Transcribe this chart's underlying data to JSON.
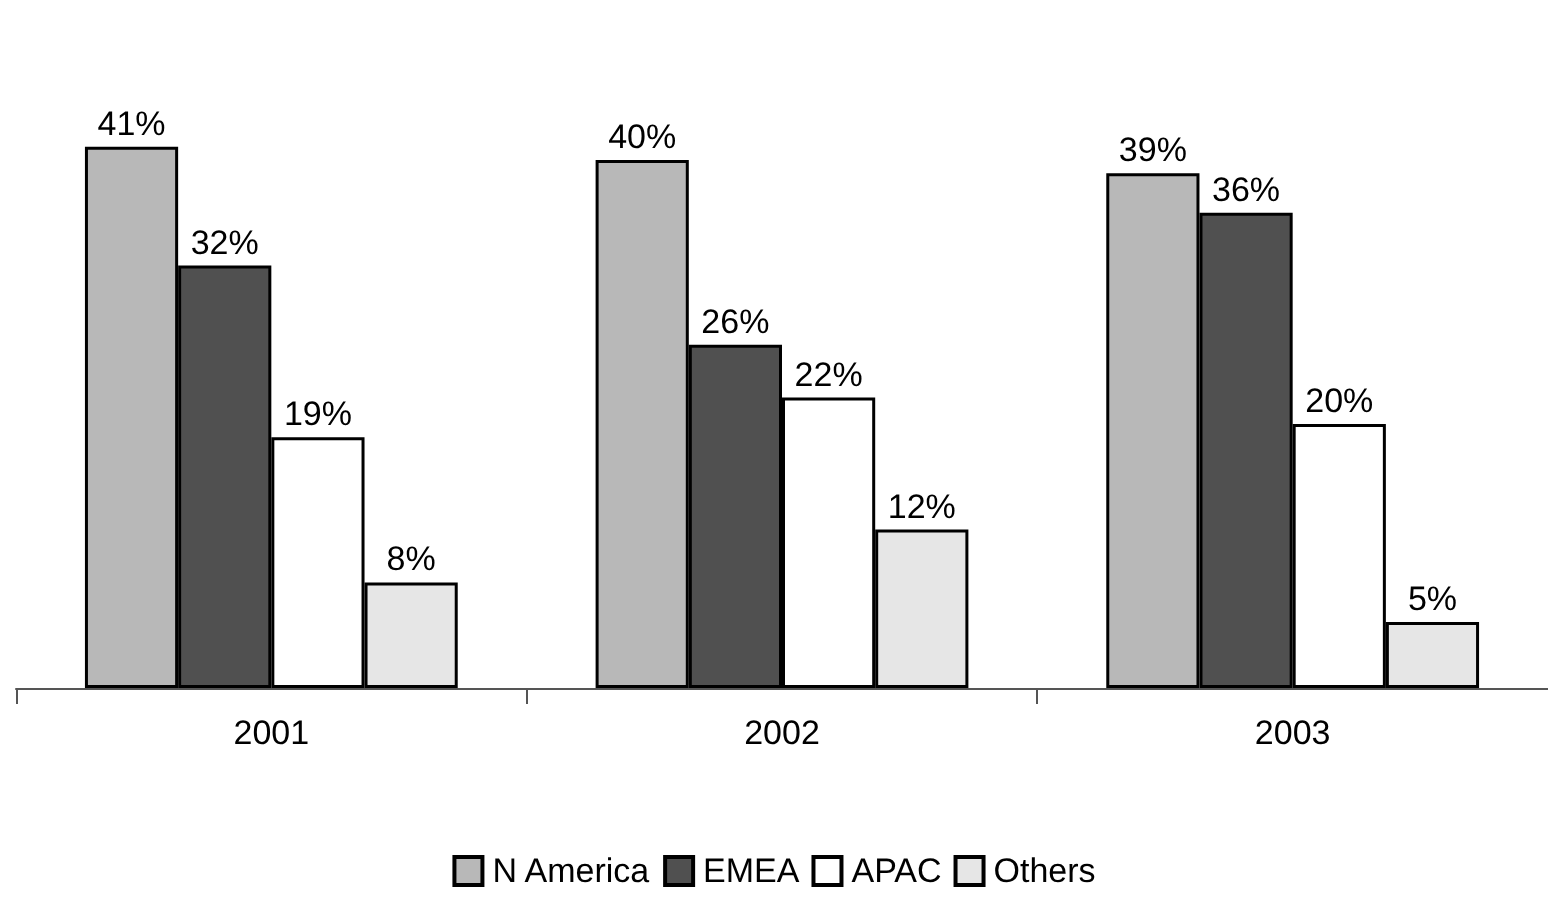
{
  "chart_data": {
    "type": "bar",
    "categories": [
      "2001",
      "2002",
      "2003"
    ],
    "series": [
      {
        "name": "N America",
        "color": "#b8b8b8",
        "values": [
          41,
          40,
          39
        ],
        "value_labels": [
          "41%",
          "40%",
          "39%"
        ]
      },
      {
        "name": "EMEA",
        "color": "#505050",
        "values": [
          32,
          26,
          36
        ],
        "value_labels": [
          "32%",
          "26%",
          "36%"
        ]
      },
      {
        "name": "APAC",
        "color": "#ffffff",
        "values": [
          19,
          22,
          20
        ],
        "value_labels": [
          "19%",
          "22%",
          "20%"
        ]
      },
      {
        "name": "Others",
        "color": "#e6e6e6",
        "values": [
          8,
          12,
          5
        ],
        "value_labels": [
          "8%",
          "12%",
          "5%"
        ]
      }
    ],
    "legend": "bottom"
  }
}
